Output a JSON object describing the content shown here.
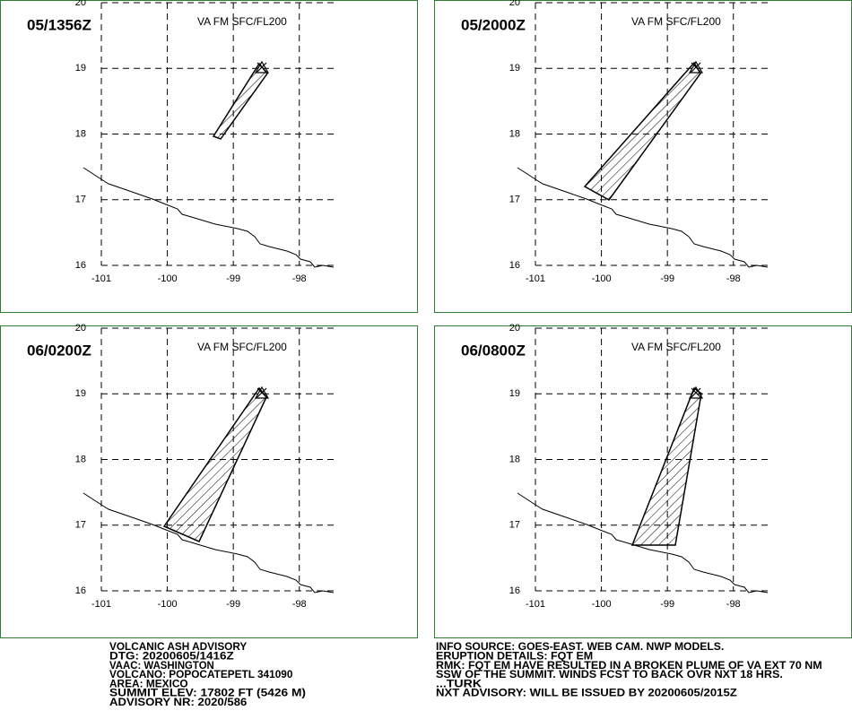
{
  "panels": [
    {
      "time": "05/1356Z",
      "level": "VA FM SFC/FL200"
    },
    {
      "time": "05/2000Z",
      "level": "VA FM SFC/FL200"
    },
    {
      "time": "06/0200Z",
      "level": "VA FM SFC/FL200"
    },
    {
      "time": "06/0800Z",
      "level": "VA FM SFC/FL200"
    }
  ],
  "map": {
    "xlim": [
      -101,
      -97.48
    ],
    "ylim": [
      16,
      20
    ],
    "xticks": [
      -101,
      -100,
      -99,
      -98
    ],
    "yticks": [
      16,
      17,
      18,
      19,
      20
    ]
  },
  "advisory": {
    "left": [
      "VOLCANIC ASH ADVISORY",
      "DTG: 20200605/1416Z",
      "VAAC: WASHINGTON",
      "VOLCANO: POPOCATEPETL 341090",
      "AREA: MEXICO",
      "SUMMIT ELEV: 17802 FT (5426 M)",
      "ADVISORY NR: 2020/586"
    ],
    "right": [
      "INFO SOURCE: GOES-EAST. WEB CAM. NWP MODELS.",
      "ERUPTION DETAILS: FQT EM",
      "RMK: FQT EM HAVE RESULTED IN A BROKEN PLUME OF VA EXT 70 NM",
      "SSW OF THE SUMMIT. WINDS FCST TO BACK OVR NXT 18 HRS.",
      "...TURK",
      "NXT ADVISORY: WILL BE ISSUED BY 20200605/2015Z"
    ]
  }
}
